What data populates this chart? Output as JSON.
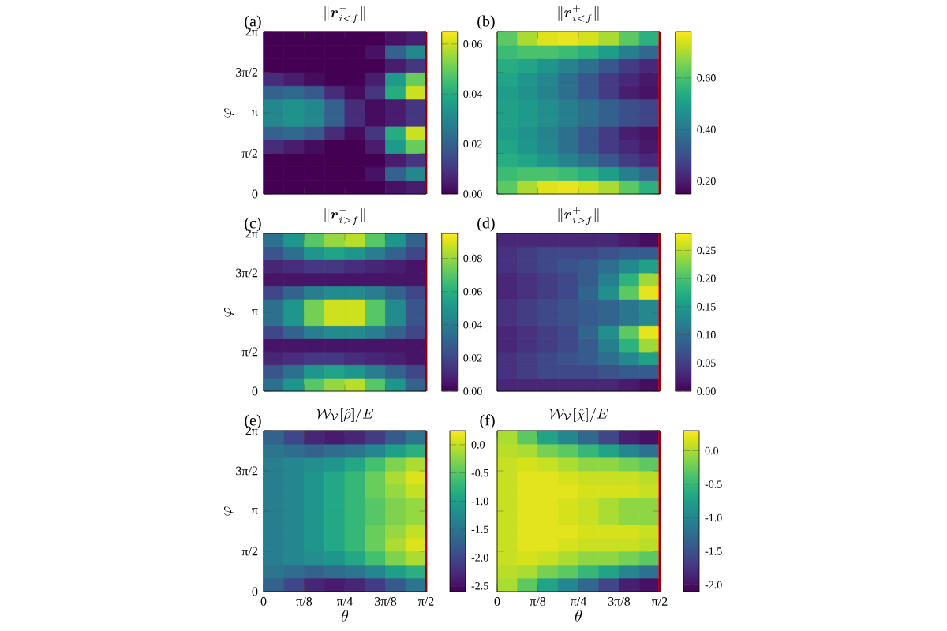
{
  "chart_data": [
    {
      "type": "heatmap",
      "title": "\\|\\boldsymbol{r}^{-}_{i<f}\\|",
      "ylabel": "\\varphi",
      "annotations": [
        "(a)"
      ],
      "tick_labels": "y",
      "x": [
        0.098,
        0.295,
        0.491,
        0.687,
        0.884,
        1.08,
        1.276,
        1.473
      ],
      "y": [
        6.021,
        5.498,
        4.974,
        4.451,
        3.927,
        3.403,
        2.88,
        2.356,
        1.833,
        1.309,
        0.785,
        0.262
      ],
      "cells": [
        [
          0,
          0,
          0,
          0,
          0,
          0,
          0.003,
          0.005
        ],
        [
          0,
          0,
          0,
          0,
          0,
          0.003,
          0.02,
          0.03
        ],
        [
          0,
          0,
          0,
          0,
          0,
          0,
          0.005,
          0.01
        ],
        [
          0.008,
          0.005,
          0.002,
          0,
          0,
          0.005,
          0.035,
          0.05
        ],
        [
          0.02,
          0.022,
          0.018,
          0.008,
          0.002,
          0.01,
          0.04,
          0.06
        ],
        [
          0.03,
          0.033,
          0.03,
          0.02,
          0.008,
          0.002,
          0.005,
          0.01
        ],
        [
          0.03,
          0.033,
          0.03,
          0.02,
          0.008,
          0.002,
          0.005,
          0.01
        ],
        [
          0.02,
          0.022,
          0.018,
          0.008,
          0.002,
          0.01,
          0.04,
          0.06
        ],
        [
          0.008,
          0.005,
          0.002,
          0,
          0,
          0.005,
          0.035,
          0.05
        ],
        [
          0,
          0,
          0,
          0,
          0,
          0,
          0.005,
          0.01
        ],
        [
          0,
          0,
          0,
          0,
          0,
          0.003,
          0.02,
          0.03
        ],
        [
          0,
          0,
          0,
          0,
          0,
          0,
          0.003,
          0.005
        ]
      ],
      "clim": [
        0,
        0.065
      ],
      "cticks": [
        {
          "value": 0,
          "label": "0.00"
        },
        {
          "value": 0.02,
          "label": "0.02"
        },
        {
          "value": 0.04,
          "label": "0.04"
        },
        {
          "value": 0.06,
          "label": "0.06"
        }
      ],
      "xlim": [
        0,
        1.570796
      ],
      "ylim": [
        0,
        6.283185
      ],
      "xticks": [
        {
          "value": 0,
          "label": null
        },
        {
          "value": 0.392699,
          "label": null
        },
        {
          "value": 0.785398,
          "label": null
        },
        {
          "value": 1.178097,
          "label": null
        },
        {
          "value": 1.570796,
          "label": null
        }
      ],
      "yticks": [
        {
          "value": 0,
          "label": "0"
        },
        {
          "value": 1.570796,
          "label": "π/2"
        },
        {
          "value": 3.141593,
          "label": "π"
        },
        {
          "value": 4.712389,
          "label": "3π/2"
        },
        {
          "value": 6.283185,
          "label": "2π"
        }
      ],
      "ref_lines": [
        {
          "axis": "x",
          "value": 1.570796,
          "color": "#ff0000"
        }
      ]
    },
    {
      "type": "heatmap",
      "title": "\\|\\boldsymbol{r}^{+}_{i<f}\\|",
      "annotations": [
        "(b)"
      ],
      "tick_labels": false,
      "x": [
        0.098,
        0.295,
        0.491,
        0.687,
        0.884,
        1.08,
        1.276,
        1.473
      ],
      "y": [
        6.021,
        5.498,
        4.974,
        4.451,
        3.927,
        3.403,
        2.88,
        2.356,
        1.833,
        1.309,
        0.785,
        0.262
      ],
      "cells": [
        [
          0.62,
          0.7,
          0.75,
          0.76,
          0.74,
          0.7,
          0.62,
          0.55
        ],
        [
          0.58,
          0.6,
          0.6,
          0.58,
          0.55,
          0.5,
          0.42,
          0.36
        ],
        [
          0.54,
          0.52,
          0.48,
          0.43,
          0.38,
          0.32,
          0.26,
          0.22
        ],
        [
          0.52,
          0.48,
          0.44,
          0.38,
          0.32,
          0.26,
          0.22,
          0.19
        ],
        [
          0.5,
          0.47,
          0.43,
          0.38,
          0.32,
          0.26,
          0.2,
          0.18
        ],
        [
          0.51,
          0.49,
          0.46,
          0.42,
          0.38,
          0.34,
          0.3,
          0.28
        ],
        [
          0.51,
          0.49,
          0.46,
          0.42,
          0.38,
          0.34,
          0.3,
          0.28
        ],
        [
          0.5,
          0.47,
          0.43,
          0.38,
          0.32,
          0.26,
          0.2,
          0.18
        ],
        [
          0.52,
          0.48,
          0.44,
          0.38,
          0.32,
          0.26,
          0.22,
          0.19
        ],
        [
          0.54,
          0.52,
          0.48,
          0.43,
          0.38,
          0.32,
          0.26,
          0.22
        ],
        [
          0.58,
          0.6,
          0.6,
          0.58,
          0.55,
          0.5,
          0.42,
          0.36
        ],
        [
          0.62,
          0.7,
          0.75,
          0.76,
          0.74,
          0.7,
          0.62,
          0.55
        ]
      ],
      "clim": [
        0.15,
        0.78
      ],
      "cticks": [
        {
          "value": 0.2,
          "label": "0.20"
        },
        {
          "value": 0.4,
          "label": "0.40"
        },
        {
          "value": 0.6,
          "label": "0.60"
        }
      ],
      "xlim": [
        0,
        1.570796
      ],
      "ylim": [
        0,
        6.283185
      ],
      "xticks": [
        {
          "value": 0,
          "label": null
        },
        {
          "value": 0.392699,
          "label": null
        },
        {
          "value": 0.785398,
          "label": null
        },
        {
          "value": 1.178097,
          "label": null
        },
        {
          "value": 1.570796,
          "label": null
        }
      ],
      "yticks": [
        {
          "value": 0,
          "label": null
        },
        {
          "value": 1.570796,
          "label": null
        },
        {
          "value": 3.141593,
          "label": null
        },
        {
          "value": 4.712389,
          "label": null
        },
        {
          "value": 6.283185,
          "label": null
        }
      ],
      "ref_lines": [
        {
          "axis": "x",
          "value": 1.570796,
          "color": "#ff0000"
        }
      ]
    },
    {
      "type": "heatmap",
      "title": "\\|\\boldsymbol{r}^{-}_{i>f}\\|",
      "ylabel": "\\varphi",
      "annotations": [
        "(c)"
      ],
      "tick_labels": "y",
      "x": [
        0.098,
        0.295,
        0.491,
        0.687,
        0.884,
        1.08,
        1.276,
        1.473
      ],
      "y": [
        6.021,
        5.498,
        4.974,
        4.451,
        3.927,
        3.403,
        2.88,
        2.356,
        1.833,
        1.309,
        0.785,
        0.262
      ],
      "cells": [
        [
          0.035,
          0.05,
          0.07,
          0.08,
          0.085,
          0.07,
          0.05,
          0.03
        ],
        [
          0.025,
          0.035,
          0.05,
          0.055,
          0.05,
          0.04,
          0.03,
          0.02
        ],
        [
          0.01,
          0.012,
          0.015,
          0.015,
          0.012,
          0.01,
          0.008,
          0.005
        ],
        [
          0.005,
          0.005,
          0.005,
          0.005,
          0.005,
          0.005,
          0.005,
          0.005
        ],
        [
          0.02,
          0.03,
          0.04,
          0.045,
          0.045,
          0.04,
          0.03,
          0.02
        ],
        [
          0.035,
          0.05,
          0.075,
          0.088,
          0.088,
          0.07,
          0.045,
          0.025
        ],
        [
          0.035,
          0.05,
          0.075,
          0.088,
          0.088,
          0.07,
          0.045,
          0.025
        ],
        [
          0.02,
          0.03,
          0.04,
          0.045,
          0.045,
          0.04,
          0.03,
          0.02
        ],
        [
          0.005,
          0.005,
          0.005,
          0.005,
          0.005,
          0.005,
          0.005,
          0.005
        ],
        [
          0.01,
          0.012,
          0.015,
          0.015,
          0.012,
          0.01,
          0.008,
          0.005
        ],
        [
          0.025,
          0.035,
          0.05,
          0.055,
          0.05,
          0.04,
          0.03,
          0.02
        ],
        [
          0.035,
          0.05,
          0.07,
          0.08,
          0.085,
          0.07,
          0.05,
          0.03
        ]
      ],
      "clim": [
        0,
        0.095
      ],
      "cticks": [
        {
          "value": 0,
          "label": "0.00"
        },
        {
          "value": 0.02,
          "label": "0.02"
        },
        {
          "value": 0.04,
          "label": "0.04"
        },
        {
          "value": 0.06,
          "label": "0.06"
        },
        {
          "value": 0.08,
          "label": "0.08"
        }
      ],
      "xlim": [
        0,
        1.570796
      ],
      "ylim": [
        0,
        6.283185
      ],
      "xticks": [
        {
          "value": 0,
          "label": null
        },
        {
          "value": 0.392699,
          "label": null
        },
        {
          "value": 0.785398,
          "label": null
        },
        {
          "value": 1.178097,
          "label": null
        },
        {
          "value": 1.570796,
          "label": null
        }
      ],
      "yticks": [
        {
          "value": 0,
          "label": "0"
        },
        {
          "value": 1.570796,
          "label": "π/2"
        },
        {
          "value": 3.141593,
          "label": "π"
        },
        {
          "value": 4.712389,
          "label": "3π/2"
        },
        {
          "value": 6.283185,
          "label": "2π"
        }
      ],
      "ref_lines": [
        {
          "axis": "x",
          "value": 1.570796,
          "color": "#ff0000"
        }
      ]
    },
    {
      "type": "heatmap",
      "title": "\\|\\boldsymbol{r}^{+}_{i>f}\\|",
      "annotations": [
        "(d)"
      ],
      "tick_labels": false,
      "x": [
        0.098,
        0.295,
        0.491,
        0.687,
        0.884,
        1.08,
        1.276,
        1.473
      ],
      "y": [
        6.021,
        5.498,
        4.974,
        4.451,
        3.927,
        3.403,
        2.88,
        2.356,
        1.833,
        1.309,
        0.785,
        0.262
      ],
      "cells": [
        [
          0.03,
          0.03,
          0.03,
          0.03,
          0.03,
          0.03,
          0.02,
          0.01
        ],
        [
          0.04,
          0.05,
          0.06,
          0.06,
          0.06,
          0.07,
          0.08,
          0.08
        ],
        [
          0.04,
          0.05,
          0.06,
          0.07,
          0.08,
          0.1,
          0.13,
          0.16
        ],
        [
          0.03,
          0.04,
          0.05,
          0.06,
          0.08,
          0.12,
          0.18,
          0.24
        ],
        [
          0.03,
          0.04,
          0.05,
          0.06,
          0.09,
          0.14,
          0.21,
          0.27
        ],
        [
          0.04,
          0.05,
          0.06,
          0.07,
          0.08,
          0.09,
          0.11,
          0.13
        ],
        [
          0.04,
          0.05,
          0.06,
          0.07,
          0.08,
          0.09,
          0.11,
          0.13
        ],
        [
          0.03,
          0.04,
          0.05,
          0.06,
          0.09,
          0.14,
          0.21,
          0.27
        ],
        [
          0.03,
          0.04,
          0.05,
          0.06,
          0.08,
          0.12,
          0.18,
          0.24
        ],
        [
          0.04,
          0.05,
          0.06,
          0.07,
          0.08,
          0.1,
          0.13,
          0.16
        ],
        [
          0.04,
          0.05,
          0.06,
          0.06,
          0.06,
          0.07,
          0.08,
          0.08
        ],
        [
          0.03,
          0.03,
          0.03,
          0.03,
          0.03,
          0.03,
          0.02,
          0.01
        ]
      ],
      "clim": [
        0,
        0.28
      ],
      "cticks": [
        {
          "value": 0,
          "label": "0.00"
        },
        {
          "value": 0.05,
          "label": "0.05"
        },
        {
          "value": 0.1,
          "label": "0.10"
        },
        {
          "value": 0.15,
          "label": "0.15"
        },
        {
          "value": 0.2,
          "label": "0.20"
        },
        {
          "value": 0.25,
          "label": "0.25"
        }
      ],
      "xlim": [
        0,
        1.570796
      ],
      "ylim": [
        0,
        6.283185
      ],
      "xticks": [
        {
          "value": 0,
          "label": null
        },
        {
          "value": 0.392699,
          "label": null
        },
        {
          "value": 0.785398,
          "label": null
        },
        {
          "value": 1.178097,
          "label": null
        },
        {
          "value": 1.570796,
          "label": null
        }
      ],
      "yticks": [
        {
          "value": 0,
          "label": null
        },
        {
          "value": 1.570796,
          "label": null
        },
        {
          "value": 3.141593,
          "label": null
        },
        {
          "value": 4.712389,
          "label": null
        },
        {
          "value": 6.283185,
          "label": null
        }
      ],
      "ref_lines": [
        {
          "axis": "x",
          "value": 1.570796,
          "color": "#ff0000"
        }
      ]
    },
    {
      "type": "heatmap",
      "title": "\\mathcal{W}_{\\mathcal{V}}[\\hat{\\rho}]/E",
      "xlabel": "\\theta",
      "ylabel": "\\varphi",
      "annotations": [
        "(e)"
      ],
      "x": [
        0.098,
        0.295,
        0.491,
        0.687,
        0.884,
        1.08,
        1.276,
        1.473
      ],
      "y": [
        6.021,
        5.498,
        4.974,
        4.451,
        3.927,
        3.403,
        2.88,
        2.356,
        1.833,
        1.309,
        0.785,
        0.262
      ],
      "cells": [
        [
          -1.7,
          -2.0,
          -2.3,
          -2.4,
          -2.3,
          -2.1,
          -1.8,
          -1.5
        ],
        [
          -1.5,
          -1.6,
          -1.7,
          -1.6,
          -1.5,
          -1.3,
          -1.0,
          -0.8
        ],
        [
          -1.4,
          -1.3,
          -1.2,
          -1.1,
          -0.9,
          -0.6,
          -0.3,
          -0.1
        ],
        [
          -1.4,
          -1.3,
          -1.1,
          -0.9,
          -0.7,
          -0.4,
          -0.1,
          0.1
        ],
        [
          -1.4,
          -1.3,
          -1.1,
          -0.9,
          -0.7,
          -0.4,
          -0.2,
          0.0
        ],
        [
          -1.4,
          -1.3,
          -1.1,
          -0.9,
          -0.7,
          -0.5,
          -0.3,
          -0.2
        ],
        [
          -1.4,
          -1.3,
          -1.1,
          -0.9,
          -0.7,
          -0.5,
          -0.3,
          -0.2
        ],
        [
          -1.4,
          -1.3,
          -1.1,
          -0.9,
          -0.7,
          -0.4,
          -0.2,
          0.0
        ],
        [
          -1.4,
          -1.3,
          -1.1,
          -0.9,
          -0.7,
          -0.4,
          -0.1,
          0.1
        ],
        [
          -1.4,
          -1.3,
          -1.2,
          -1.1,
          -0.9,
          -0.6,
          -0.3,
          -0.1
        ],
        [
          -1.5,
          -1.6,
          -1.7,
          -1.6,
          -1.5,
          -1.3,
          -1.0,
          -0.8
        ],
        [
          -1.7,
          -2.0,
          -2.3,
          -2.4,
          -2.3,
          -2.1,
          -1.8,
          -1.5
        ]
      ],
      "clim": [
        -2.6,
        0.25
      ],
      "cticks": [
        {
          "value": -2.5,
          "label": "-2.5"
        },
        {
          "value": -2.0,
          "label": "-2.0"
        },
        {
          "value": -1.5,
          "label": "-1.5"
        },
        {
          "value": -1.0,
          "label": "-1.0"
        },
        {
          "value": -0.5,
          "label": "-0.5"
        },
        {
          "value": 0,
          "label": "0.0"
        }
      ],
      "xlim": [
        0,
        1.570796
      ],
      "ylim": [
        0,
        6.283185
      ],
      "xticks": [
        {
          "value": 0,
          "label": "0"
        },
        {
          "value": 0.392699,
          "label": "π/8"
        },
        {
          "value": 0.785398,
          "label": "π/4"
        },
        {
          "value": 1.178097,
          "label": "3π/8"
        },
        {
          "value": 1.570796,
          "label": "π/2"
        }
      ],
      "yticks": [
        {
          "value": 0,
          "label": "0"
        },
        {
          "value": 1.570796,
          "label": "π/2"
        },
        {
          "value": 3.141593,
          "label": "π"
        },
        {
          "value": 4.712389,
          "label": "3π/2"
        },
        {
          "value": 6.283185,
          "label": "2π"
        }
      ],
      "ref_lines": [
        {
          "axis": "x",
          "value": 1.570796,
          "color": "#ff0000"
        }
      ]
    },
    {
      "type": "heatmap",
      "title": "\\mathcal{W}_{\\mathcal{V}}[\\hat{\\chi}]/E",
      "xlabel": "\\theta",
      "annotations": [
        "(f)"
      ],
      "tick_labels": "x",
      "x": [
        0.098,
        0.295,
        0.491,
        0.687,
        0.884,
        1.08,
        1.276,
        1.473
      ],
      "y": [
        6.021,
        5.498,
        4.974,
        4.451,
        3.927,
        3.403,
        2.88,
        2.356,
        1.833,
        1.309,
        0.785,
        0.262
      ],
      "cells": [
        [
          0.0,
          -0.3,
          -0.7,
          -1.0,
          -1.3,
          -1.6,
          -1.9,
          -2.0
        ],
        [
          0.05,
          0.0,
          -0.2,
          -0.3,
          -0.5,
          -0.7,
          -1.0,
          -1.2
        ],
        [
          0.1,
          0.15,
          0.1,
          0.0,
          -0.1,
          -0.1,
          -0.2,
          -0.3
        ],
        [
          0.1,
          0.2,
          0.2,
          0.15,
          0.1,
          0.1,
          0.1,
          0.05
        ],
        [
          0.1,
          0.2,
          0.2,
          0.2,
          0.15,
          0.15,
          0.15,
          0.1
        ],
        [
          0.1,
          0.2,
          0.2,
          0.15,
          0.1,
          0.0,
          -0.1,
          -0.1
        ],
        [
          0.1,
          0.2,
          0.2,
          0.15,
          0.1,
          0.0,
          -0.1,
          -0.1
        ],
        [
          0.1,
          0.2,
          0.2,
          0.2,
          0.15,
          0.15,
          0.15,
          0.1
        ],
        [
          0.1,
          0.2,
          0.2,
          0.15,
          0.1,
          0.1,
          0.1,
          0.05
        ],
        [
          0.1,
          0.15,
          0.1,
          0.0,
          -0.1,
          -0.1,
          -0.2,
          -0.3
        ],
        [
          0.05,
          0.0,
          -0.2,
          -0.3,
          -0.5,
          -0.7,
          -1.0,
          -1.2
        ],
        [
          0.0,
          -0.3,
          -0.7,
          -1.0,
          -1.3,
          -1.6,
          -1.9,
          -2.0
        ]
      ],
      "clim": [
        -2.1,
        0.3
      ],
      "cticks": [
        {
          "value": -2.0,
          "label": "-2.0"
        },
        {
          "value": -1.5,
          "label": "-1.5"
        },
        {
          "value": -1.0,
          "label": "-1.0"
        },
        {
          "value": -0.5,
          "label": "-0.5"
        },
        {
          "value": 0,
          "label": "0.0"
        }
      ],
      "xlim": [
        0,
        1.570796
      ],
      "ylim": [
        0,
        6.283185
      ],
      "xticks": [
        {
          "value": 0,
          "label": "0"
        },
        {
          "value": 0.392699,
          "label": "π/8"
        },
        {
          "value": 0.785398,
          "label": "π/4"
        },
        {
          "value": 1.178097,
          "label": "3π/8"
        },
        {
          "value": 1.570796,
          "label": "π/2"
        }
      ],
      "yticks": [
        {
          "value": 0,
          "label": null
        },
        {
          "value": 1.570796,
          "label": null
        },
        {
          "value": 3.141593,
          "label": null
        },
        {
          "value": 4.712389,
          "label": null
        },
        {
          "value": 6.283185,
          "label": null
        }
      ],
      "ref_lines": [
        {
          "axis": "x",
          "value": 1.570796,
          "color": "#ff0000"
        }
      ]
    }
  ]
}
